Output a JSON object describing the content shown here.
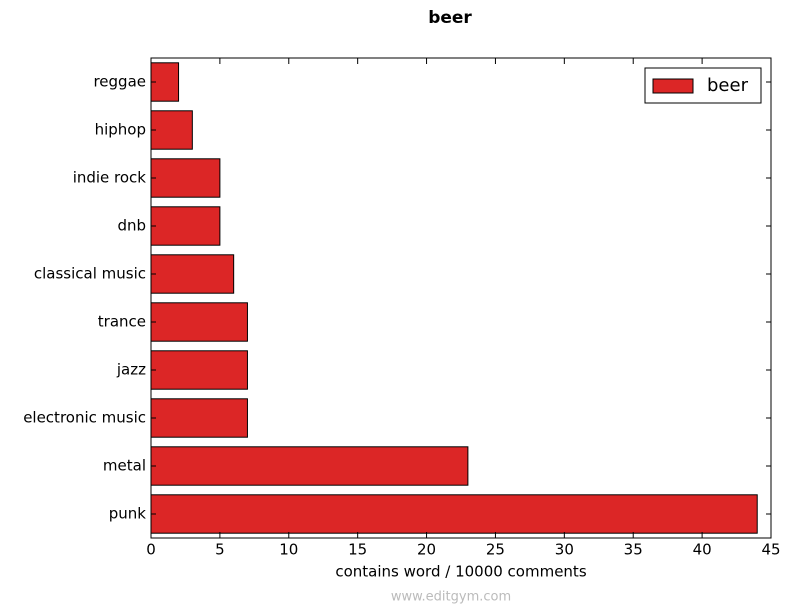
{
  "chart_data": {
    "type": "hbar",
    "title": "beer",
    "xlabel": "contains word / 10000 comments",
    "categories": [
      "reggae",
      "hiphop",
      "indie rock",
      "dnb",
      "classical music",
      "trance",
      "jazz",
      "electronic music",
      "metal",
      "punk"
    ],
    "series": [
      {
        "name": "beer",
        "color": "#dc2626",
        "values": [
          2,
          3,
          5,
          5,
          6,
          7,
          7,
          7,
          23,
          44
        ]
      }
    ],
    "xlim": [
      0,
      45
    ],
    "xticks": [
      0,
      5,
      10,
      15,
      20,
      25,
      30,
      35,
      40,
      45
    ],
    "legend": "upper right",
    "watermark": "www.editgym.com"
  }
}
